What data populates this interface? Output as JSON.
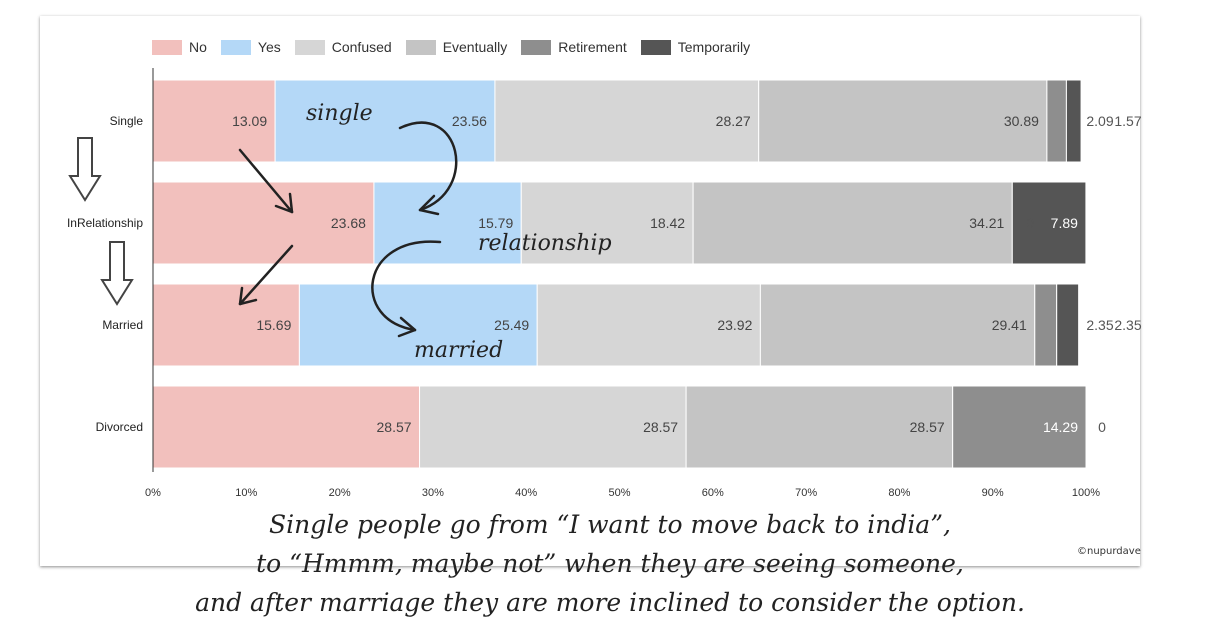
{
  "chart_data": {
    "type": "bar",
    "orientation": "horizontal",
    "stacked": "percent",
    "categories": [
      "Single",
      "InRelationship",
      "Married",
      "Divorced"
    ],
    "series": [
      {
        "name": "No",
        "color": "#f2c0bd",
        "values": [
          13.09,
          23.68,
          15.69,
          28.57
        ]
      },
      {
        "name": "Yes",
        "color": "#b4d8f7",
        "values": [
          23.56,
          15.79,
          25.49,
          0
        ]
      },
      {
        "name": "Confused",
        "color": "#d6d6d6",
        "values": [
          28.27,
          18.42,
          23.92,
          28.57
        ]
      },
      {
        "name": "Eventually",
        "color": "#c4c4c4",
        "values": [
          30.89,
          34.21,
          29.41,
          28.57
        ]
      },
      {
        "name": "Retirement",
        "color": "#8e8e8e",
        "values": [
          2.09,
          0,
          2.35,
          14.29
        ]
      },
      {
        "name": "Temporarily",
        "color": "#555555",
        "values": [
          1.57,
          7.89,
          2.35,
          0
        ]
      }
    ],
    "xlim": [
      0,
      100
    ],
    "x_ticks": [
      "0%",
      "10%",
      "20%",
      "30%",
      "40%",
      "50%",
      "60%",
      "70%",
      "80%",
      "90%",
      "100%"
    ],
    "legend": "top-left",
    "grid": false
  },
  "annotations": {
    "single": "single",
    "relationship": "relationship",
    "married": "married"
  },
  "caption": {
    "line1": "Single people go from “I want to move back to india”,",
    "line2": "to “Hmmm, maybe not” when they are seeing someone,",
    "line3": "and after marriage they are more inclined to consider the option."
  },
  "credit": "©nupurdave"
}
